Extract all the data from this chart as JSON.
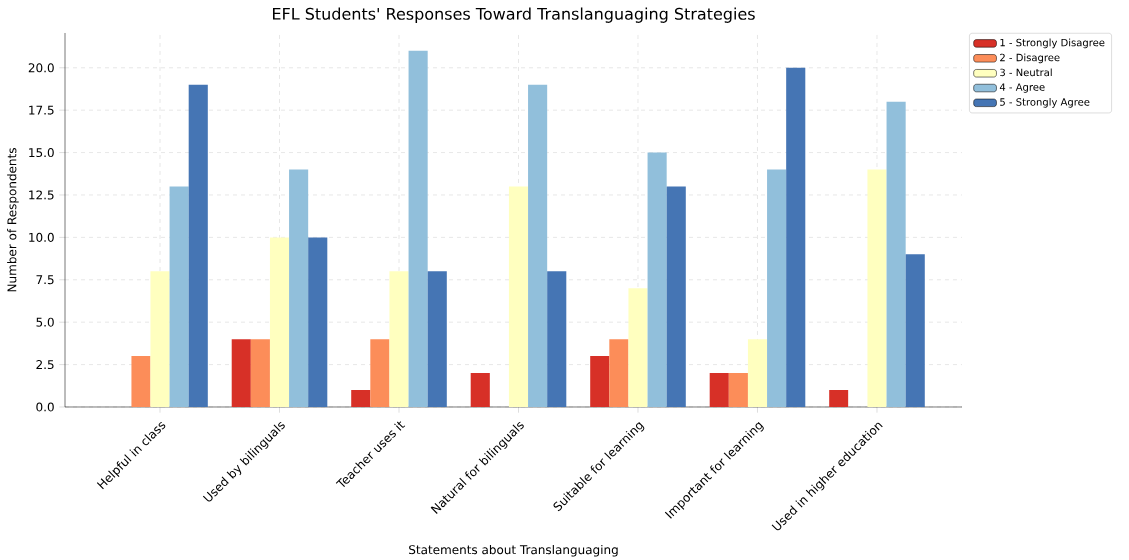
{
  "chart_data": {
    "type": "bar",
    "title": "EFL Students' Responses Toward Translanguaging Strategies",
    "xlabel": "Statements about Translanguaging",
    "ylabel": "Number of Respondents",
    "categories": [
      "Helpful in class",
      "Used by bilinguals",
      "Teacher uses it",
      "Natural for bilinguals",
      "Suitable for learning",
      "Important for learning",
      "Used in higher education"
    ],
    "series": [
      {
        "name": "1 - Strongly Disagree",
        "color": "#d73027",
        "values": [
          0,
          4,
          1,
          2,
          3,
          2,
          1
        ]
      },
      {
        "name": "2 - Disagree",
        "color": "#fc8d59",
        "values": [
          3,
          4,
          4,
          0,
          4,
          2,
          0
        ]
      },
      {
        "name": "3 - Neutral",
        "color": "#ffffbf",
        "values": [
          8,
          10,
          8,
          13,
          7,
          4,
          14
        ]
      },
      {
        "name": "4 - Agree",
        "color": "#91bfdb",
        "values": [
          13,
          14,
          21,
          19,
          15,
          14,
          18
        ]
      },
      {
        "name": "5 - Strongly Agree",
        "color": "#4575b4",
        "values": [
          19,
          10,
          8,
          8,
          13,
          20,
          9
        ]
      }
    ],
    "ylim": [
      0,
      22.05
    ],
    "yticks": [
      {
        "value": 0,
        "label": "0.0"
      },
      {
        "value": 2.5,
        "label": "2.5"
      },
      {
        "value": 5,
        "label": "5.0"
      },
      {
        "value": 7.5,
        "label": "7.5"
      },
      {
        "value": 10,
        "label": "10.0"
      },
      {
        "value": 12.5,
        "label": "12.5"
      },
      {
        "value": 15,
        "label": "15.0"
      },
      {
        "value": 17.5,
        "label": "17.5"
      },
      {
        "value": 20,
        "label": "20.0"
      }
    ],
    "grid": true,
    "legend": "top right"
  }
}
